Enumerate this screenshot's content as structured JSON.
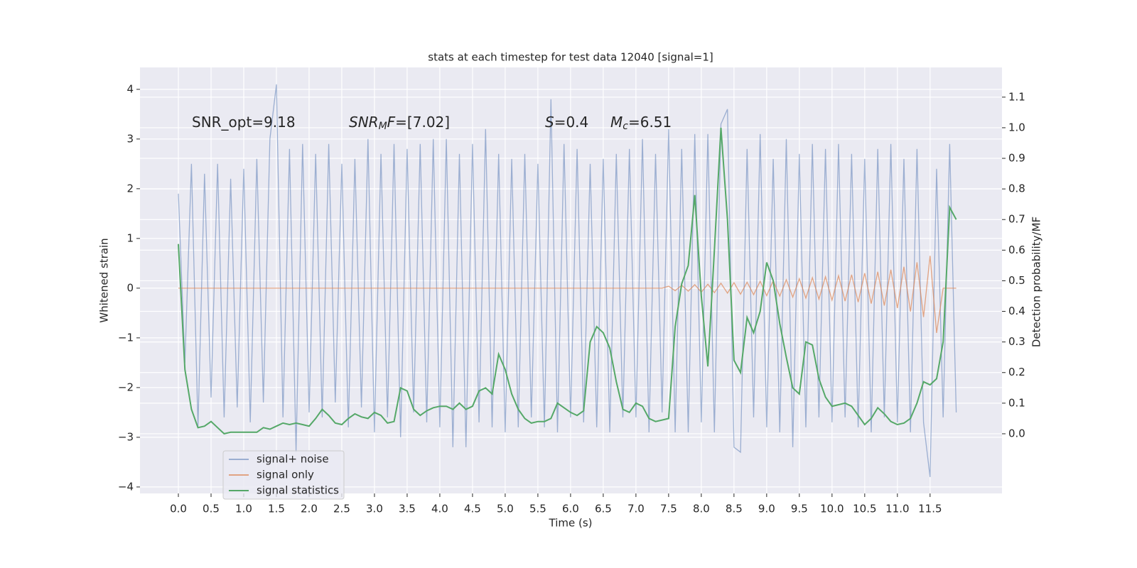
{
  "chart_data": {
    "type": "line",
    "title": "stats at each timestep for test data 12040 [signal=1]",
    "x_label": "Time (s)",
    "y_label": "Whitened strain",
    "y2_label": "Detection probability/MF",
    "annotations": [
      [
        {
          "text": "SNR_opt=9.18"
        }
      ],
      [
        {
          "text": "SNR",
          "italic": true
        },
        {
          "text": "M",
          "italic": true,
          "sub": true
        },
        {
          "text": "F",
          "italic": true
        },
        {
          "text": "=[7.02]"
        }
      ],
      [
        {
          "text": "S",
          "italic": true
        },
        {
          "text": "=0.4"
        }
      ],
      [
        {
          "text": "M",
          "italic": true
        },
        {
          "text": "c",
          "italic": true,
          "sub": true
        },
        {
          "text": "=6.51"
        }
      ]
    ],
    "x": [
      0,
      0.1,
      0.2,
      0.3,
      0.4,
      0.5,
      0.6,
      0.7,
      0.8,
      0.9,
      1,
      1.1,
      1.2,
      1.3,
      1.4,
      1.5,
      1.6,
      1.7,
      1.8,
      1.9,
      2,
      2.1,
      2.2,
      2.3,
      2.4,
      2.5,
      2.6,
      2.7,
      2.8,
      2.9,
      3,
      3.1,
      3.2,
      3.3,
      3.4,
      3.5,
      3.6,
      3.7,
      3.8,
      3.9,
      4,
      4.1,
      4.2,
      4.3,
      4.4,
      4.5,
      4.6,
      4.7,
      4.8,
      4.9,
      5,
      5.1,
      5.2,
      5.3,
      5.4,
      5.5,
      5.6,
      5.7,
      5.8,
      5.9,
      6,
      6.1,
      6.2,
      6.3,
      6.4,
      6.5,
      6.6,
      6.7,
      6.8,
      6.9,
      7,
      7.1,
      7.2,
      7.3,
      7.4,
      7.5,
      7.6,
      7.7,
      7.8,
      7.9,
      8,
      8.1,
      8.2,
      8.3,
      8.4,
      8.5,
      8.6,
      8.7,
      8.8,
      8.9,
      9,
      9.1,
      9.2,
      9.3,
      9.4,
      9.5,
      9.6,
      9.7,
      9.8,
      9.9,
      10,
      10.1,
      10.2,
      10.3,
      10.4,
      10.5,
      10.6,
      10.7,
      10.8,
      10.9,
      11,
      11.1,
      11.2,
      11.3,
      11.4,
      11.5,
      11.6,
      11.7,
      11.8,
      11.9
    ],
    "series": [
      {
        "name": "signal+ noise",
        "color": "#4c72b0",
        "opacity": 0.5,
        "values": [
          1.9,
          -1.5,
          2.5,
          -2.8,
          2.3,
          -2.2,
          2.5,
          -2.6,
          2.2,
          -2.4,
          2.4,
          -2.7,
          2.6,
          -2.3,
          3.0,
          4.1,
          -2.6,
          2.8,
          -3.3,
          2.9,
          -2.5,
          2.7,
          -2.6,
          2.9,
          -2.3,
          2.5,
          -2.8,
          2.6,
          -2.4,
          3.0,
          -2.9,
          2.7,
          -2.6,
          2.9,
          -3.0,
          2.8,
          -2.5,
          2.9,
          -2.7,
          3.0,
          -2.8,
          3.0,
          -3.2,
          2.7,
          -3.2,
          2.9,
          -2.7,
          3.2,
          -2.8,
          2.7,
          -2.9,
          2.6,
          -2.8,
          2.7,
          -2.6,
          2.5,
          -2.8,
          3.8,
          -2.9,
          2.9,
          -2.6,
          2.8,
          -2.7,
          2.5,
          -2.8,
          2.6,
          -2.9,
          2.7,
          -2.6,
          2.8,
          -2.6,
          3.0,
          -2.9,
          2.7,
          -2.5,
          3.2,
          -2.9,
          2.8,
          -2.9,
          3.1,
          -2.7,
          3.1,
          -2.9,
          3.3,
          3.6,
          -3.2,
          -3.3,
          2.8,
          -2.6,
          3.1,
          -2.8,
          2.6,
          -2.9,
          3.0,
          -3.2,
          2.7,
          -2.8,
          2.9,
          -2.6,
          2.8,
          -2.7,
          2.9,
          -2.6,
          2.7,
          -2.8,
          2.6,
          -2.9,
          2.8,
          -2.6,
          2.9,
          -2.7,
          2.6,
          -2.9,
          2.8,
          -2.7,
          -3.8,
          2.4,
          -2.6,
          2.9,
          -2.5
        ]
      },
      {
        "name": "signal only",
        "color": "#dd8452",
        "opacity": 0.7,
        "values": [
          0,
          0,
          0,
          0,
          0,
          0,
          0,
          0,
          0,
          0,
          0,
          0,
          0,
          0,
          0,
          0,
          0,
          0,
          0,
          0,
          0,
          0,
          0,
          0,
          0,
          0,
          0,
          0,
          0,
          0,
          0,
          0,
          0,
          0,
          0,
          0,
          0,
          0,
          0,
          0,
          0,
          0,
          0,
          0,
          0,
          0,
          0,
          0,
          0,
          0,
          0,
          0,
          0,
          0,
          0,
          0,
          0,
          0,
          0,
          0,
          0,
          0,
          0,
          0,
          0,
          0,
          0,
          0,
          0,
          0,
          0,
          0,
          0,
          0,
          0,
          0.04,
          -0.05,
          0.06,
          -0.06,
          0.07,
          -0.08,
          0.08,
          -0.09,
          0.1,
          -0.1,
          0.11,
          -0.12,
          0.12,
          -0.13,
          0.14,
          -0.15,
          0.15,
          -0.16,
          0.17,
          -0.18,
          0.19,
          -0.2,
          0.21,
          -0.22,
          0.23,
          -0.24,
          0.25,
          -0.26,
          0.27,
          -0.28,
          0.3,
          -0.31,
          0.33,
          -0.35,
          0.37,
          -0.4,
          0.43,
          -0.47,
          0.52,
          -0.58,
          0.65,
          -0.9,
          0,
          0,
          0
        ]
      },
      {
        "name": "signal statistics",
        "color": "#55a868",
        "opacity": 1,
        "axis": "y2",
        "values": [
          0.62,
          0.21,
          0.08,
          0.02,
          0.025,
          0.04,
          0.02,
          0.0,
          0.005,
          0.005,
          0.005,
          0.005,
          0.005,
          0.02,
          0.015,
          0.025,
          0.035,
          0.03,
          0.035,
          0.03,
          0.025,
          0.05,
          0.08,
          0.06,
          0.035,
          0.03,
          0.05,
          0.065,
          0.055,
          0.05,
          0.07,
          0.06,
          0.035,
          0.04,
          0.15,
          0.14,
          0.08,
          0.06,
          0.075,
          0.085,
          0.09,
          0.09,
          0.08,
          0.1,
          0.08,
          0.09,
          0.14,
          0.15,
          0.13,
          0.26,
          0.21,
          0.13,
          0.08,
          0.05,
          0.035,
          0.04,
          0.04,
          0.05,
          0.1,
          0.085,
          0.07,
          0.06,
          0.075,
          0.3,
          0.35,
          0.33,
          0.28,
          0.17,
          0.08,
          0.07,
          0.1,
          0.09,
          0.05,
          0.04,
          0.045,
          0.05,
          0.35,
          0.49,
          0.55,
          0.78,
          0.45,
          0.22,
          0.6,
          1.0,
          0.7,
          0.24,
          0.2,
          0.38,
          0.33,
          0.4,
          0.56,
          0.5,
          0.36,
          0.25,
          0.15,
          0.13,
          0.3,
          0.29,
          0.18,
          0.12,
          0.09,
          0.095,
          0.1,
          0.09,
          0.06,
          0.03,
          0.05,
          0.085,
          0.065,
          0.04,
          0.03,
          0.035,
          0.05,
          0.1,
          0.17,
          0.16,
          0.18,
          0.3,
          0.74,
          0.7
        ]
      }
    ],
    "xlim": [
      -0.587,
      12.6
    ],
    "xticks": [
      {
        "value": 0,
        "label": "0.0"
      },
      0.5,
      {
        "value": 1,
        "label": "1.0"
      },
      1.5,
      {
        "value": 2,
        "label": "2.0"
      },
      2.5,
      {
        "value": 3,
        "label": "3.0"
      },
      3.5,
      {
        "value": 4,
        "label": "4.0"
      },
      4.5,
      {
        "value": 5,
        "label": "5.0"
      },
      5.5,
      {
        "value": 6,
        "label": "6.0"
      },
      6.5,
      {
        "value": 7,
        "label": "7.0"
      },
      7.5,
      {
        "value": 8,
        "label": "8.0"
      },
      8.5,
      {
        "value": 9,
        "label": "9.0"
      },
      9.5,
      {
        "value": 10,
        "label": "10.0"
      },
      10.5,
      {
        "value": 11,
        "label": "11.0"
      },
      11.5
    ],
    "ylim": [
      -4.13,
      4.44
    ],
    "yticks": [
      {
        "value": -4,
        "label": "−4"
      },
      {
        "value": -3,
        "label": "−3"
      },
      {
        "value": -2,
        "label": "−2"
      },
      {
        "value": -1,
        "label": "−1"
      },
      0,
      1,
      2,
      3,
      4
    ],
    "y2lim": [
      -0.195,
      1.197
    ],
    "y2ticks": [
      {
        "value": 0,
        "label": "0.0"
      },
      0.1,
      0.2,
      0.3,
      0.4,
      0.5,
      0.6,
      0.7,
      0.8,
      0.9,
      {
        "value": 1,
        "label": "1.0"
      },
      1.1
    ],
    "grid": true,
    "legend": "lower left"
  }
}
